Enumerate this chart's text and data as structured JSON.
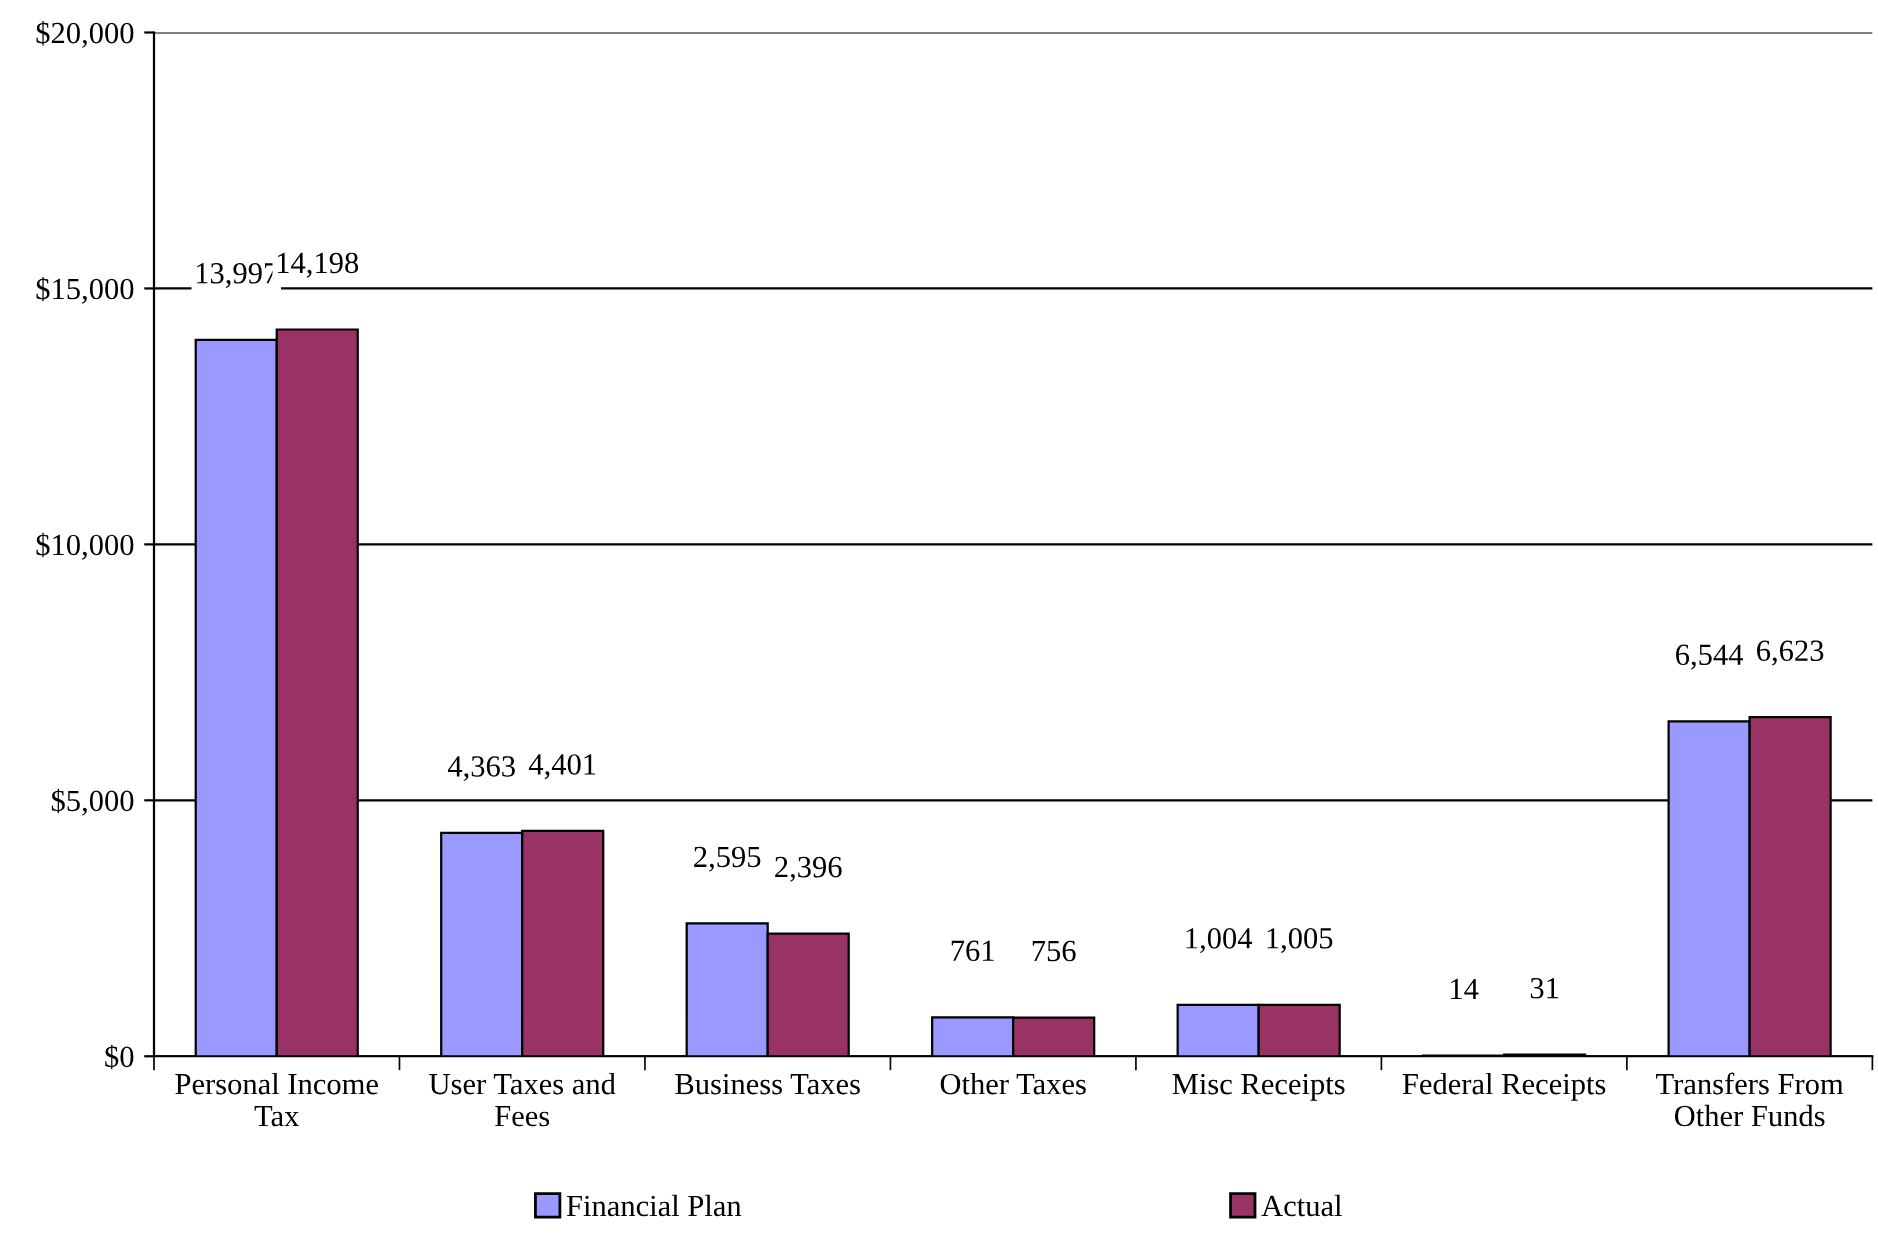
{
  "chart_data": {
    "type": "bar",
    "categories": [
      "Personal Income\nTax",
      "User Taxes and\nFees",
      "Business Taxes",
      "Other Taxes",
      "Misc Receipts",
      "Federal Receipts",
      "Transfers From\nOther Funds"
    ],
    "series": [
      {
        "name": "Financial Plan",
        "color": "#9999ff",
        "values": [
          13997,
          4363,
          2595,
          761,
          1004,
          14,
          6544
        ],
        "value_labels": [
          "13,997",
          "4,363",
          "2,595",
          "761",
          "1,004",
          "14",
          "6,544"
        ]
      },
      {
        "name": "Actual",
        "color": "#993366",
        "values": [
          14198,
          4401,
          2396,
          756,
          1005,
          31,
          6623
        ],
        "value_labels": [
          "14,198",
          "4,401",
          "2,396",
          "756",
          "1,005",
          "31",
          "6,623"
        ]
      }
    ],
    "ylim": [
      0,
      20000
    ],
    "yticks": [
      {
        "value": 0,
        "label": "$0"
      },
      {
        "value": 5000,
        "label": "$5,000"
      },
      {
        "value": 10000,
        "label": "$10,000"
      },
      {
        "value": 15000,
        "label": "$15,000"
      },
      {
        "value": 20000,
        "label": "$20,000"
      }
    ],
    "grid": "y",
    "legend": "bottom"
  }
}
